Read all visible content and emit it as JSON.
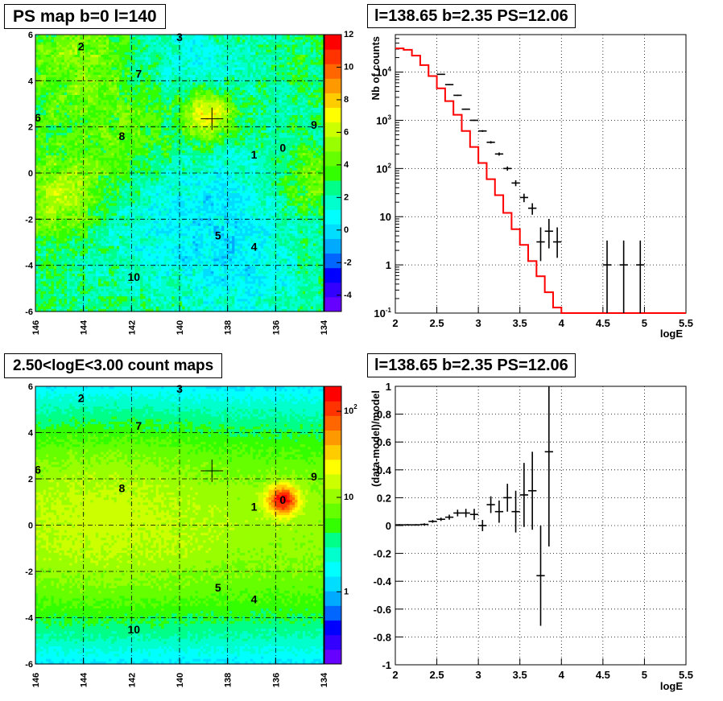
{
  "panels": {
    "tl_title": "PS map b=0 l=140",
    "tr_title": "l=138.65 b=2.35 PS=12.06",
    "bl_title": "2.50<logE<3.00 count maps",
    "br_title": "l=138.65 b=2.35 PS=12.06"
  },
  "chart_data": [
    {
      "type": "heatmap",
      "title": "PS map b=0 l=140",
      "xlim": [
        146,
        134
      ],
      "ylim": [
        -6,
        6
      ],
      "x_ticks": [
        "146",
        "144",
        "142",
        "140",
        "138",
        "136",
        "134"
      ],
      "y_ticks": [
        "6",
        "4",
        "2",
        "0",
        "-2",
        "-4",
        "-6"
      ],
      "colorbar": {
        "min": -5,
        "max": 12,
        "ticks": [
          "12",
          "10",
          "8",
          "6",
          "4",
          "2",
          "0",
          "-2",
          "-4"
        ]
      },
      "marker": {
        "l": 138.65,
        "b": 2.35
      },
      "sources": [
        {
          "label": "0",
          "l": 135.7,
          "b": 1.1
        },
        {
          "label": "1",
          "l": 136.9,
          "b": 0.8
        },
        {
          "label": "2",
          "l": 144.1,
          "b": 5.5
        },
        {
          "label": "3",
          "l": 140.0,
          "b": 5.9
        },
        {
          "label": "4",
          "l": 136.9,
          "b": -3.2
        },
        {
          "label": "5",
          "l": 138.4,
          "b": -2.7
        },
        {
          "label": "6",
          "l": 145.9,
          "b": 2.4
        },
        {
          "label": "7",
          "l": 141.7,
          "b": 4.3
        },
        {
          "label": "8",
          "l": 142.4,
          "b": 1.6
        },
        {
          "label": "9",
          "l": 134.4,
          "b": 2.1
        },
        {
          "label": "10",
          "l": 141.9,
          "b": -4.5
        }
      ]
    },
    {
      "type": "line",
      "title": "l=138.65 b=2.35 PS=12.06",
      "xlabel": "logE",
      "ylabel": "Nb of counts",
      "xlim": [
        2,
        5.5
      ],
      "ylim": [
        0.1,
        60000
      ],
      "yscale": "log",
      "x_ticks": [
        "2",
        "2.5",
        "3",
        "3.5",
        "4",
        "4.5",
        "5",
        "5.5"
      ],
      "y_ticks": [
        "10^4",
        "10^3",
        "10^2",
        "10",
        "1",
        "10^-1"
      ],
      "grid": true,
      "series": [
        {
          "kind": "model",
          "color": "#ff0000",
          "x": [
            2.0,
            2.1,
            2.2,
            2.3,
            2.4,
            2.5,
            2.6,
            2.7,
            2.8,
            2.9,
            3.0,
            3.1,
            3.2,
            3.3,
            3.4,
            3.5,
            3.6,
            3.7,
            3.8,
            3.9,
            4.0,
            4.1,
            4.2,
            4.3,
            4.4,
            4.5,
            4.6,
            4.7,
            4.8,
            4.9,
            5.0,
            5.1,
            5.2,
            5.3,
            5.4
          ],
          "values": [
            31000,
            29000,
            22000,
            14000,
            8300,
            4600,
            2500,
            1300,
            600,
            280,
            130,
            60,
            28,
            12,
            5.5,
            2.6,
            1.2,
            0.58,
            0.27,
            0.13,
            0.1,
            0.1,
            0.1,
            0.1,
            0.1,
            0.1,
            0.1,
            0.1,
            0.1,
            0.1,
            0.1,
            0.1,
            0.1,
            0.1,
            0.1
          ]
        },
        {
          "kind": "data",
          "color": "#000000",
          "x": [
            2.55,
            2.65,
            2.75,
            2.85,
            2.95,
            3.05,
            3.15,
            3.25,
            3.35,
            3.45,
            3.55,
            3.65,
            3.75,
            3.85,
            3.95,
            4.55,
            4.75,
            4.95
          ],
          "values": [
            9000,
            5500,
            3300,
            1700,
            1000,
            600,
            350,
            200,
            100,
            50,
            25,
            15,
            3,
            5,
            3,
            1,
            1,
            1
          ],
          "err_low": [
            8800,
            5350,
            3200,
            1650,
            970,
            575,
            330,
            185,
            90,
            43,
            20,
            11,
            1.2,
            2.2,
            1.4,
            0.1,
            0.1,
            0.1
          ],
          "err_high": [
            9200,
            5650,
            3400,
            1750,
            1030,
            625,
            370,
            215,
            110,
            57,
            30,
            19,
            6,
            9,
            6,
            3.2,
            3.2,
            3.2
          ]
        }
      ]
    },
    {
      "type": "heatmap",
      "title": "2.50<logE<3.00 count maps",
      "xlim": [
        146,
        134
      ],
      "ylim": [
        -6,
        6
      ],
      "x_ticks": [
        "146",
        "144",
        "142",
        "140",
        "138",
        "136",
        "134"
      ],
      "y_ticks": [
        "6",
        "4",
        "2",
        "0",
        "-2",
        "-4",
        "-6"
      ],
      "colorbar": {
        "scale": "log",
        "ticks": [
          "10^2",
          "10",
          "1"
        ]
      },
      "marker": {
        "l": 138.65,
        "b": 2.35
      },
      "sources": [
        {
          "label": "0",
          "l": 135.7,
          "b": 1.1
        },
        {
          "label": "1",
          "l": 136.9,
          "b": 0.8
        },
        {
          "label": "2",
          "l": 144.1,
          "b": 5.5
        },
        {
          "label": "3",
          "l": 140.0,
          "b": 5.9
        },
        {
          "label": "4",
          "l": 136.9,
          "b": -3.2
        },
        {
          "label": "5",
          "l": 138.4,
          "b": -2.7
        },
        {
          "label": "6",
          "l": 145.9,
          "b": 2.4
        },
        {
          "label": "7",
          "l": 141.7,
          "b": 4.3
        },
        {
          "label": "8",
          "l": 142.4,
          "b": 1.6
        },
        {
          "label": "9",
          "l": 134.4,
          "b": 2.1
        },
        {
          "label": "10",
          "l": 141.9,
          "b": -4.5
        }
      ]
    },
    {
      "type": "scatter",
      "title": "l=138.65 b=2.35 PS=12.06",
      "xlabel": "logE",
      "ylabel": "(data-model)/model",
      "xlim": [
        2,
        5.5
      ],
      "ylim": [
        -1,
        1
      ],
      "x_ticks": [
        "2",
        "2.5",
        "3",
        "3.5",
        "4",
        "4.5",
        "5",
        "5.5"
      ],
      "y_ticks": [
        "1",
        "0.8",
        "0.6",
        "0.4",
        "0.2",
        "0",
        "-0.2",
        "-0.4",
        "-0.6",
        "-0.8",
        "-1"
      ],
      "grid": true,
      "series": [
        {
          "kind": "residual",
          "color": "#000000",
          "x": [
            2.05,
            2.15,
            2.25,
            2.35,
            2.45,
            2.55,
            2.65,
            2.75,
            2.85,
            2.95,
            3.05,
            3.15,
            3.25,
            3.35,
            3.45,
            3.55,
            3.65,
            3.75,
            3.85
          ],
          "values": [
            0.005,
            0.005,
            0.005,
            0.008,
            0.03,
            0.045,
            0.06,
            0.09,
            0.09,
            0.08,
            0.0,
            0.15,
            0.1,
            0.2,
            0.1,
            0.22,
            0.25,
            -0.36,
            0.53
          ],
          "err": [
            0.005,
            0.005,
            0.005,
            0.008,
            0.01,
            0.012,
            0.018,
            0.024,
            0.03,
            0.04,
            0.04,
            0.06,
            0.08,
            0.1,
            0.15,
            0.23,
            0.28,
            0.36,
            0.68
          ]
        }
      ]
    }
  ]
}
